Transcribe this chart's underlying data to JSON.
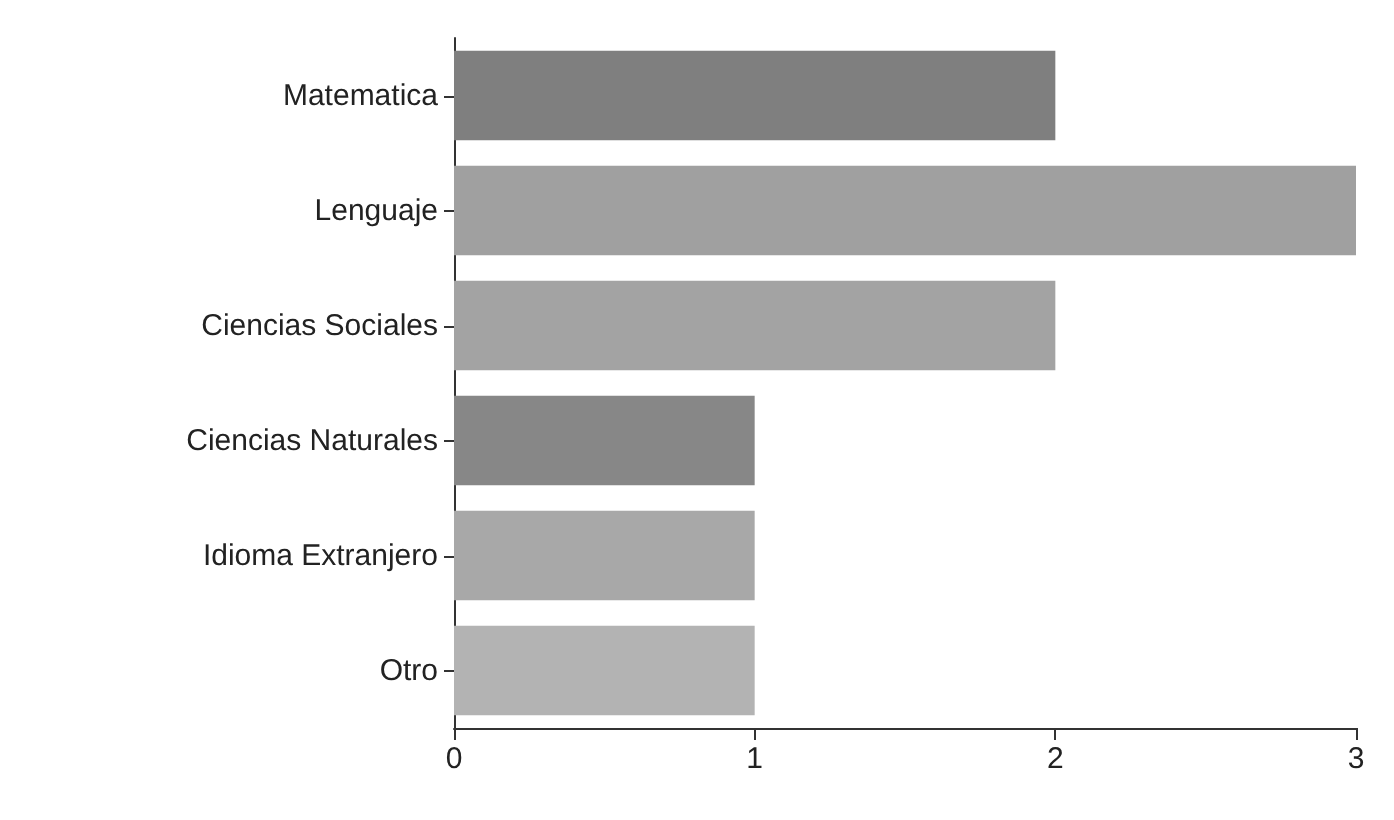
{
  "chart_data": {
    "type": "bar",
    "orientation": "horizontal",
    "categories": [
      "Matematica",
      "Lenguaje",
      "Ciencias Sociales",
      "Ciencias Naturales",
      "Idioma Extranjero",
      "Otro"
    ],
    "values": [
      2,
      3,
      2,
      1,
      1,
      1
    ],
    "colors": [
      "#7f7f7f",
      "#a0a0a0",
      "#a3a3a3",
      "#878787",
      "#a8a8a8",
      "#b3b3b3"
    ],
    "xlim": [
      0,
      3
    ],
    "xticks": [
      0,
      1,
      2,
      3
    ],
    "grid": false
  }
}
